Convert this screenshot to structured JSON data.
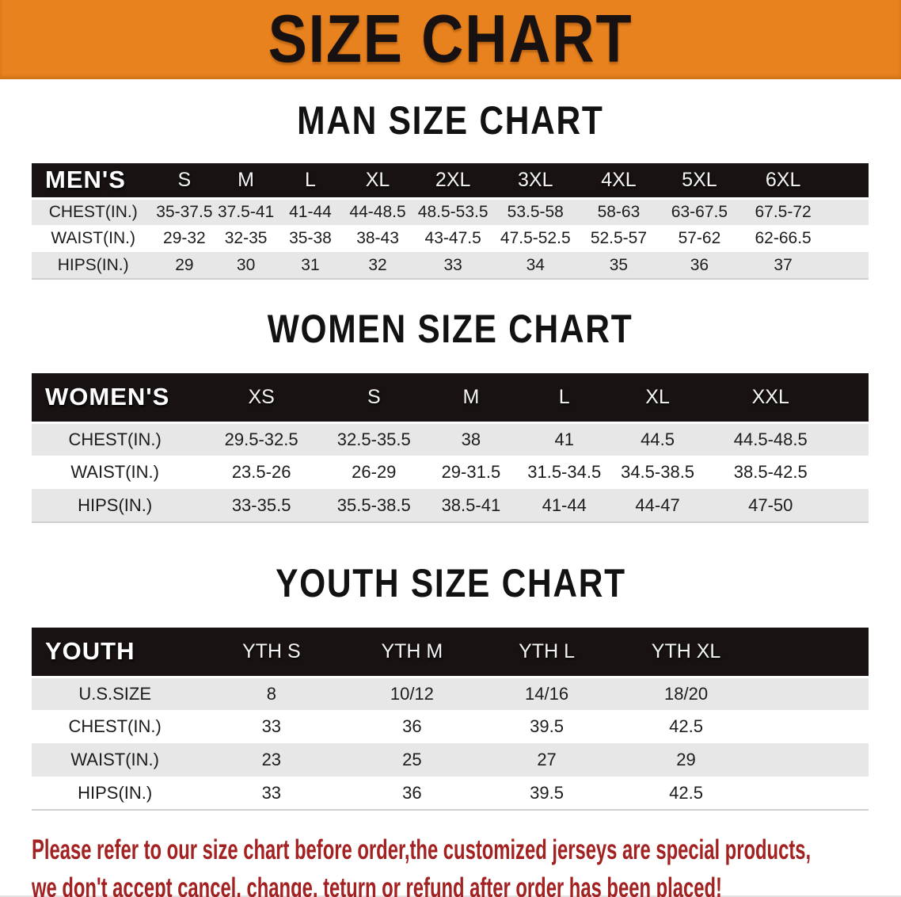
{
  "banner": {
    "title": "SIZE CHART"
  },
  "colors": {
    "banner_bg": "#E8821E",
    "header_bar": "#181212",
    "row_alt": "#E7E7E7",
    "disclaimer_text": "#A32121"
  },
  "sections": [
    {
      "heading": "MAN SIZE CHART",
      "table": {
        "header_label": "MEN'S",
        "columns": [
          "S",
          "M",
          "L",
          "XL",
          "2XL",
          "3XL",
          "4XL",
          "5XL",
          "6XL"
        ],
        "rows": [
          {
            "label": "CHEST(IN.)",
            "values": [
              "35-37.5",
              "37.5-41",
              "41-44",
              "44-48.5",
              "48.5-53.5",
              "53.5-58",
              "58-63",
              "63-67.5",
              "67.5-72"
            ]
          },
          {
            "label": "WAIST(IN.)",
            "values": [
              "29-32",
              "32-35",
              "35-38",
              "38-43",
              "43-47.5",
              "47.5-52.5",
              "52.5-57",
              "57-62",
              "62-66.5"
            ]
          },
          {
            "label": "HIPS(IN.)",
            "values": [
              "29",
              "30",
              "31",
              "32",
              "33",
              "34",
              "35",
              "36",
              "37"
            ]
          }
        ]
      }
    },
    {
      "heading": "WOMEN SIZE CHART",
      "table": {
        "header_label": "WOMEN'S",
        "columns": [
          "XS",
          "S",
          "M",
          "L",
          "XL",
          "XXL"
        ],
        "rows": [
          {
            "label": "CHEST(IN.)",
            "values": [
              "29.5-32.5",
              "32.5-35.5",
              "38",
              "41",
              "44.5",
              "44.5-48.5"
            ]
          },
          {
            "label": "WAIST(IN.)",
            "values": [
              "23.5-26",
              "26-29",
              "29-31.5",
              "31.5-34.5",
              "34.5-38.5",
              "38.5-42.5"
            ]
          },
          {
            "label": "HIPS(IN.)",
            "values": [
              "33-35.5",
              "35.5-38.5",
              "38.5-41",
              "41-44",
              "44-47",
              "47-50"
            ]
          }
        ]
      }
    },
    {
      "heading": "YOUTH SIZE CHART",
      "table": {
        "header_label": "YOUTH",
        "columns": [
          "YTH S",
          "YTH M",
          "YTH L",
          "YTH XL"
        ],
        "rows": [
          {
            "label": "U.S.SIZE",
            "values": [
              "8",
              "10/12",
              "14/16",
              "18/20"
            ]
          },
          {
            "label": "CHEST(IN.)",
            "values": [
              "33",
              "36",
              "39.5",
              "42.5"
            ]
          },
          {
            "label": "WAIST(IN.)",
            "values": [
              "23",
              "25",
              "27",
              "29"
            ]
          },
          {
            "label": "HIPS(IN.)",
            "values": [
              "33",
              "36",
              "39.5",
              "42.5"
            ]
          }
        ]
      }
    }
  ],
  "footer": {
    "line1": "Please refer to our size chart before order,the customized jerseys are special products,",
    "line2": "we don't accept cancel, change, teturn or refund after order has been placed!"
  }
}
